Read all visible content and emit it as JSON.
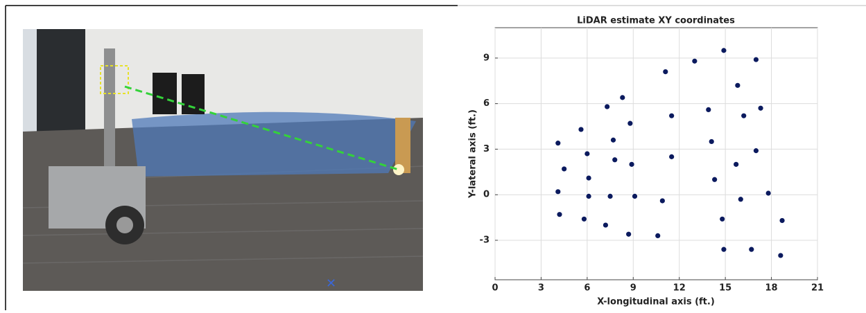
{
  "chart_data": {
    "type": "scatter",
    "title": "LiDAR estimate XY coordinates",
    "x_label": "X-longitudinal axis (ft.)",
    "y_label": "Y-lateral axis (ft.)",
    "x": [
      4.1,
      4.5,
      4.1,
      4.2,
      5.6,
      6.0,
      6.1,
      6.1,
      5.8,
      7.3,
      7.7,
      7.8,
      7.5,
      7.2,
      8.3,
      8.8,
      8.9,
      9.1,
      8.7,
      11.1,
      11.5,
      11.5,
      10.9,
      10.6,
      13.0,
      13.9,
      14.1,
      14.3,
      14.8,
      14.9,
      14.9,
      15.8,
      15.7,
      16.0,
      16.2,
      16.7,
      17.0,
      17.0,
      17.3,
      17.8,
      18.7,
      18.6
    ],
    "y": [
      3.4,
      1.7,
      0.2,
      -1.3,
      4.3,
      2.7,
      1.1,
      -0.1,
      -1.6,
      5.8,
      3.6,
      2.3,
      -0.1,
      -2.0,
      6.4,
      4.7,
      2.0,
      -0.1,
      -2.6,
      8.1,
      5.2,
      2.5,
      -0.4,
      -2.7,
      8.8,
      5.6,
      3.5,
      1.0,
      -1.6,
      -3.6,
      9.5,
      7.2,
      2.0,
      -0.3,
      5.2,
      -3.6,
      8.9,
      2.9,
      5.7,
      0.1,
      -1.7,
      -4.0
    ],
    "color": "#0b1a5e",
    "xlim": [
      0,
      21
    ],
    "ylim": [
      -5.6,
      11
    ],
    "xticks": [
      0,
      3,
      6,
      9,
      12,
      15,
      18,
      21
    ],
    "yticks": [
      -3,
      0,
      3,
      6,
      9
    ],
    "grid": true
  }
}
